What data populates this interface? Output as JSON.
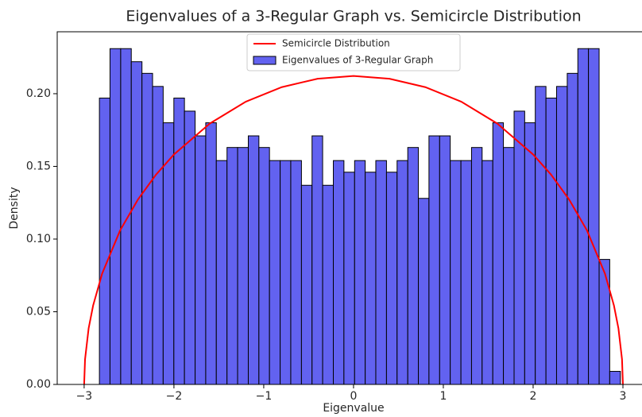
{
  "chart_data": {
    "type": "histogram",
    "title": "Eigenvalues of a 3-Regular Graph vs. Semicircle Distribution",
    "xlabel": "Eigenvalue",
    "ylabel": "Density",
    "xlim": [
      -3.3,
      3.27
    ],
    "ylim": [
      0,
      0.2426
    ],
    "xticks": [
      {
        "value": -3,
        "label": "−3"
      },
      {
        "value": -2,
        "label": "−2"
      },
      {
        "value": -1,
        "label": "−1"
      },
      0,
      1,
      2,
      3
    ],
    "yticks": [
      {
        "value": 0,
        "label": "0.00"
      },
      0.05,
      {
        "value": 0.1,
        "label": "0.10"
      },
      0.15,
      {
        "value": 0.2,
        "label": "0.20"
      }
    ],
    "grid": false,
    "legend": "upper center",
    "series": [
      {
        "name": "Semicircle Distribution",
        "type": "line",
        "color": "#ff0000",
        "x": [
          -3,
          -2.99,
          -2.95,
          -2.9,
          -2.8,
          -2.6,
          -2.4,
          -2.2,
          -2,
          -1.6,
          -1.2,
          -0.8,
          -0.4,
          0,
          0.4,
          0.8,
          1.2,
          1.6,
          2,
          2.2,
          2.4,
          2.6,
          2.8,
          2.9,
          2.95,
          2.99,
          3
        ],
        "values": [
          0,
          0.0173,
          0.0386,
          0.0543,
          0.0762,
          0.1059,
          0.1273,
          0.1443,
          0.1582,
          0.1795,
          0.1945,
          0.2045,
          0.2103,
          0.2122,
          0.2103,
          0.2045,
          0.1945,
          0.1795,
          0.1582,
          0.1443,
          0.1273,
          0.1059,
          0.0762,
          0.0543,
          0.0386,
          0.0173,
          0
        ]
      },
      {
        "name": "Eigenvalues of 3-Regular Graph",
        "type": "histogram",
        "color": "#6262f0",
        "bins": [
          -2.83,
          -2.712,
          -2.593,
          -2.475,
          -2.356,
          -2.238,
          -2.12,
          -2.001,
          -1.883,
          -1.764,
          -1.646,
          -1.528,
          -1.409,
          -1.291,
          -1.172,
          -1.054,
          -0.936,
          -0.817,
          -0.699,
          -0.58,
          -0.462,
          -0.344,
          -0.225,
          -0.107,
          0.012,
          0.13,
          0.248,
          0.367,
          0.485,
          0.604,
          0.722,
          0.84,
          0.959,
          1.077,
          1.196,
          1.314,
          1.432,
          1.551,
          1.669,
          1.788,
          1.906,
          2.024,
          2.143,
          2.261,
          2.38,
          2.498,
          2.616,
          2.735,
          2.853,
          2.972
        ],
        "values": [
          0.197,
          0.231,
          0.231,
          0.222,
          0.214,
          0.205,
          0.18,
          0.197,
          0.188,
          0.171,
          0.18,
          0.154,
          0.163,
          0.163,
          0.171,
          0.163,
          0.154,
          0.154,
          0.154,
          0.137,
          0.171,
          0.137,
          0.154,
          0.146,
          0.154,
          0.146,
          0.154,
          0.146,
          0.154,
          0.163,
          0.128,
          0.171,
          0.171,
          0.154,
          0.154,
          0.163,
          0.154,
          0.18,
          0.163,
          0.188,
          0.18,
          0.205,
          0.197,
          0.205,
          0.214,
          0.231,
          0.231,
          0.086,
          0.009
        ]
      }
    ]
  }
}
